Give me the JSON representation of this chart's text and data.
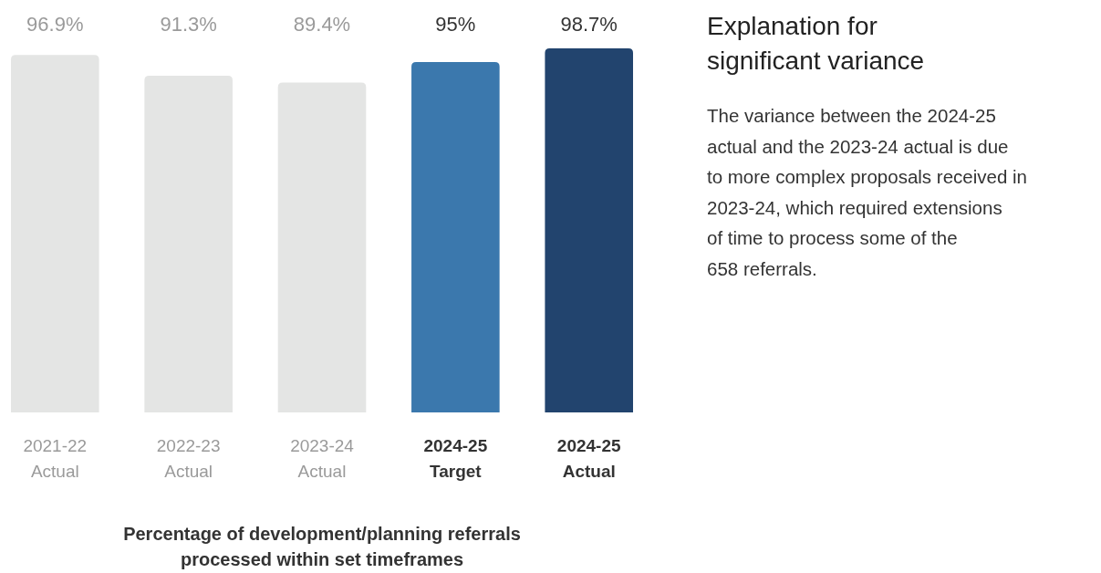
{
  "chart_data": [
    {
      "type": "bar",
      "title": "Percentage of development/planning referrals\nprocessed within set timeframes",
      "categories": [
        "2021-22\nActual",
        "2022-23\nActual",
        "2023-24\nActual",
        "2024-25\nTarget",
        "2024-25\nActual"
      ],
      "values": [
        96.9,
        91.3,
        89.4,
        95,
        98.7
      ],
      "value_labels": [
        "96.9%",
        "91.3%",
        "89.4%",
        "95%",
        "98.7%"
      ],
      "colors": [
        "#e4e5e4",
        "#e4e5e4",
        "#e4e5e4",
        "#3b78ad",
        "#22446e"
      ]
    },
    {
      "type": "other",
      "title": "Explanation for\nsignificant variance",
      "annotations": [
        "The variance between the 2024-25\nactual and the 2023-24 actual is due\nto more complex proposals received in\n2023-24, which required extensions\nof time to process some of the\n658 referrals."
      ]
    }
  ]
}
